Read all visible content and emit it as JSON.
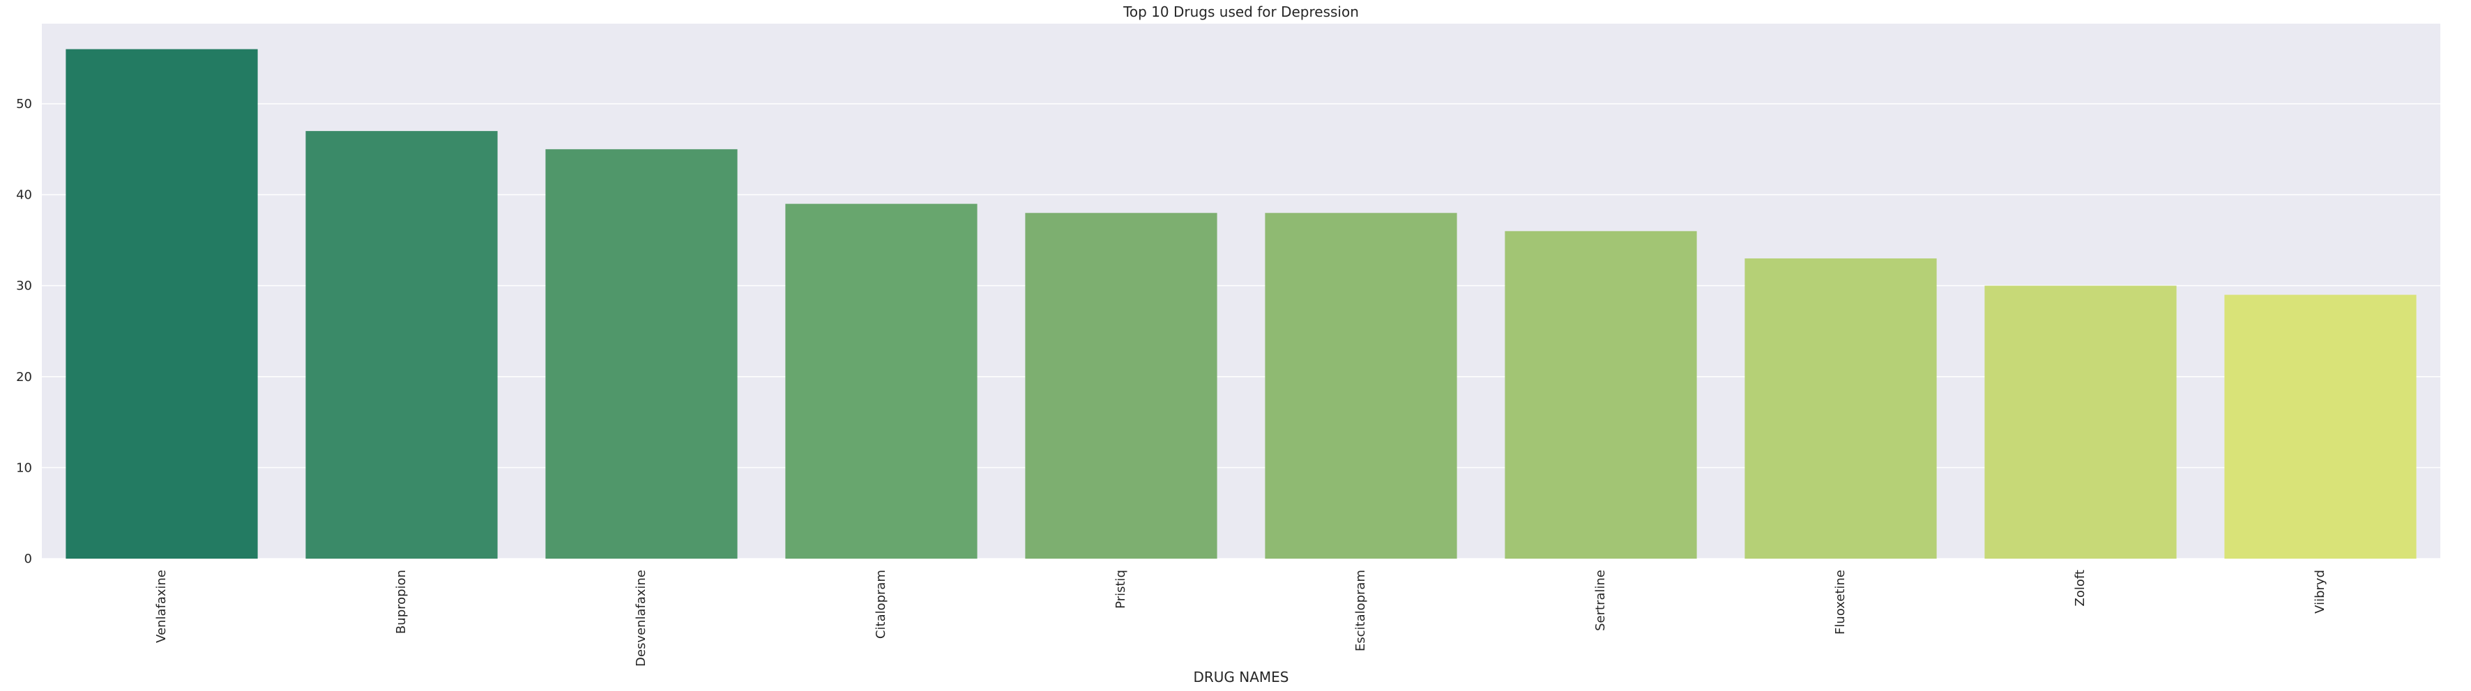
{
  "chart_data": {
    "type": "bar",
    "title": "Top 10 Drugs used for Depression",
    "xlabel": "DRUG NAMES",
    "ylabel": "",
    "categories": [
      "Venlafaxine",
      "Bupropion",
      "Desvenlafaxine",
      "Citalopram",
      "Pristiq",
      "Escitalopram",
      "Sertraline",
      "Fluoxetine",
      "Zoloft",
      "Viibryd"
    ],
    "values": [
      56,
      47,
      45,
      39,
      38,
      38,
      36,
      33,
      30,
      29
    ],
    "ylim": [
      0,
      58.8
    ],
    "yticks": [
      0,
      10,
      20,
      30,
      40,
      50
    ],
    "grid": true,
    "legend": "none",
    "colors": [
      "#237b62",
      "#3a8a68",
      "#50976a",
      "#68a66e",
      "#7daf70",
      "#8fba72",
      "#a2c574",
      "#b5d076",
      "#c7d977",
      "#d9e378"
    ],
    "background": "#eaeaf2",
    "grid_color": "#ffffff"
  }
}
